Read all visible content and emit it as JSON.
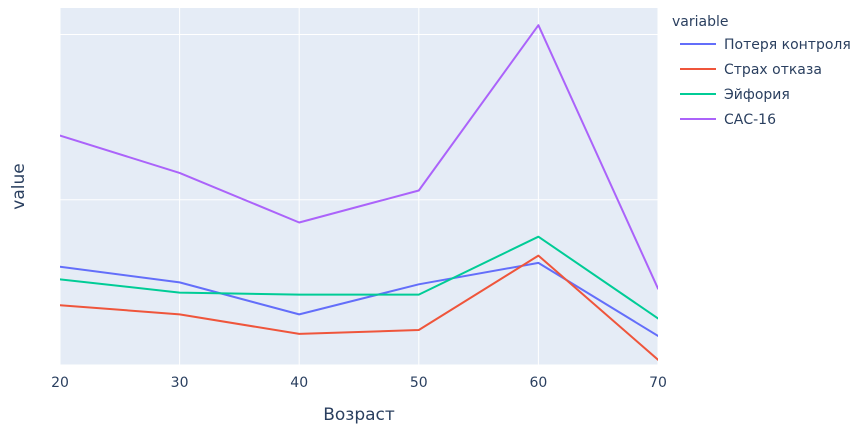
{
  "chart_data": {
    "type": "line",
    "xlabel": "Возраст",
    "ylabel": "value",
    "x": [
      20,
      30,
      40,
      50,
      60,
      70
    ],
    "xlim": [
      20,
      70
    ],
    "ylim": [
      0,
      1.08
    ],
    "y_tick_labels_shown": false,
    "grid": true,
    "legend": {
      "title": "variable",
      "placement": "right"
    },
    "series": [
      {
        "name": "Потеря контроля",
        "color": "#636efa",
        "values": [
          0.297,
          0.25,
          0.153,
          0.244,
          0.309,
          0.088
        ]
      },
      {
        "name": "Страх отказа",
        "color": "#ef553b",
        "values": [
          0.181,
          0.153,
          0.094,
          0.106,
          0.331,
          0.016
        ]
      },
      {
        "name": "Эйфория",
        "color": "#00cc96",
        "values": [
          0.259,
          0.219,
          0.213,
          0.213,
          0.388,
          0.141
        ]
      },
      {
        "name": "САС-16",
        "color": "#ab63fa",
        "values": [
          0.694,
          0.581,
          0.431,
          0.528,
          1.028,
          0.231
        ]
      }
    ]
  },
  "plot_style": {
    "plot_background": "#e5ecf6",
    "grid_color": "#ffffff",
    "text_color": "#2a3f5f"
  }
}
